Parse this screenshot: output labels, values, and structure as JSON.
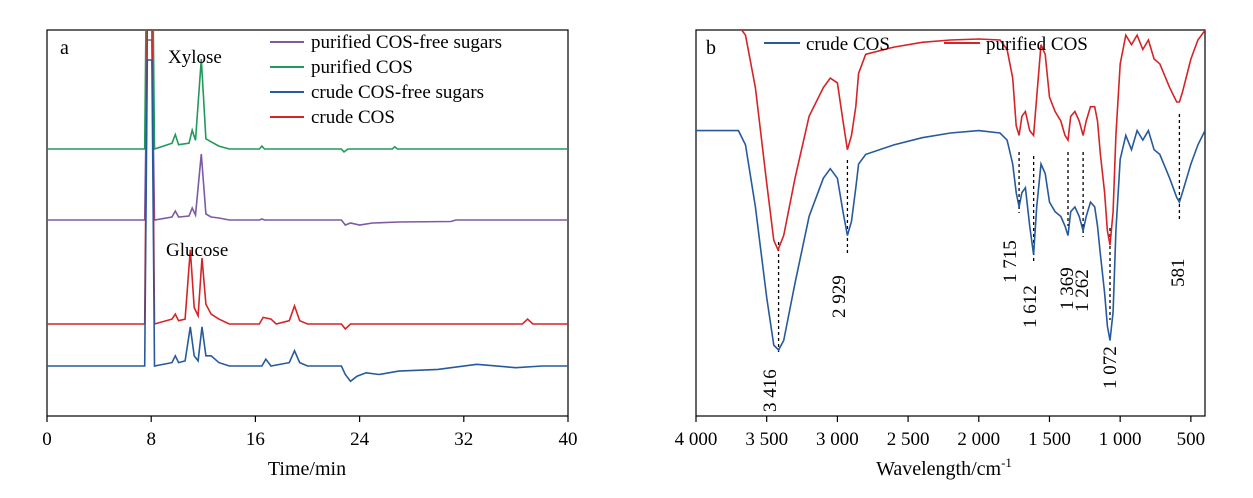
{
  "colors": {
    "red": "#d42428",
    "green": "#1f9a5a",
    "purple": "#7d5aa3",
    "blue": "#275a9c",
    "axis": "#000000"
  },
  "chart_data": [
    {
      "type": "line",
      "panel": "a",
      "xlabel": "Time/min",
      "ylabel": "",
      "xlim": [
        0,
        40
      ],
      "xticks": [
        "0",
        "8",
        "16",
        "24",
        "32",
        "40"
      ],
      "legend": {
        "placement": "top-right",
        "entries": [
          {
            "label": "purified COS-free sugars",
            "color": "#7d5aa3"
          },
          {
            "label": "purified COS",
            "color": "#1f9a5a"
          },
          {
            "label": "crude COS-free sugars",
            "color": "#275a9c"
          },
          {
            "label": "crude COS",
            "color": "#d42428"
          }
        ]
      },
      "annotations": [
        "Xylose",
        "Glucose"
      ],
      "series": [
        {
          "name": "purified COS",
          "color": "#1f9a5a",
          "points": [
            [
              0,
              0
            ],
            [
              7.5,
              0
            ],
            [
              7.7,
              18
            ],
            [
              8.05,
              18
            ],
            [
              8.25,
              0
            ],
            [
              9.6,
              0.4
            ],
            [
              9.85,
              1
            ],
            [
              10.1,
              0.3
            ],
            [
              10.9,
              0.4
            ],
            [
              11.15,
              1.3
            ],
            [
              11.4,
              0.6
            ],
            [
              11.85,
              6.2
            ],
            [
              12.2,
              0.7
            ],
            [
              12.6,
              0.5
            ],
            [
              13.2,
              0.2
            ],
            [
              14,
              0
            ],
            [
              16.3,
              0
            ],
            [
              16.5,
              0.2
            ],
            [
              16.7,
              0
            ],
            [
              22.6,
              0
            ],
            [
              22.8,
              -0.2
            ],
            [
              23.1,
              0
            ],
            [
              26.5,
              0
            ],
            [
              26.7,
              0.15
            ],
            [
              26.9,
              0
            ],
            [
              40,
              0
            ]
          ]
        },
        {
          "name": "purified COS-free sugars",
          "color": "#7d5aa3",
          "points": [
            [
              0,
              0
            ],
            [
              7.5,
              0
            ],
            [
              7.7,
              18
            ],
            [
              8.05,
              18
            ],
            [
              8.25,
              0
            ],
            [
              9.6,
              0.3
            ],
            [
              9.85,
              0.9
            ],
            [
              10.1,
              0.3
            ],
            [
              10.9,
              0.4
            ],
            [
              11.15,
              1.2
            ],
            [
              11.4,
              0.5
            ],
            [
              11.85,
              6.6
            ],
            [
              12.2,
              0.6
            ],
            [
              12.6,
              0.3
            ],
            [
              13.2,
              0.2
            ],
            [
              14,
              0
            ],
            [
              16.3,
              0
            ],
            [
              16.5,
              0.1
            ],
            [
              16.7,
              0
            ],
            [
              22.6,
              0
            ],
            [
              22.9,
              -0.5
            ],
            [
              23.3,
              -0.3
            ],
            [
              24,
              -0.5
            ],
            [
              25,
              -0.3
            ],
            [
              27,
              -0.2
            ],
            [
              31,
              -0.15
            ],
            [
              31.4,
              0
            ],
            [
              40,
              0
            ]
          ]
        },
        {
          "name": "crude COS",
          "color": "#d42428",
          "points": [
            [
              0,
              0
            ],
            [
              7.5,
              0
            ],
            [
              7.7,
              18
            ],
            [
              8.05,
              18
            ],
            [
              8.25,
              0
            ],
            [
              9.6,
              0.3
            ],
            [
              9.85,
              0.6
            ],
            [
              10.1,
              0.2
            ],
            [
              10.6,
              0.3
            ],
            [
              11,
              4.5
            ],
            [
              11.3,
              1
            ],
            [
              11.6,
              0.5
            ],
            [
              11.9,
              4
            ],
            [
              12.2,
              1.2
            ],
            [
              12.6,
              0.6
            ],
            [
              13.2,
              0.3
            ],
            [
              14,
              0
            ],
            [
              16.3,
              0
            ],
            [
              16.6,
              0.4
            ],
            [
              17.2,
              0.3
            ],
            [
              17.6,
              0
            ],
            [
              18.6,
              0.2
            ],
            [
              19,
              1.1
            ],
            [
              19.4,
              0.2
            ],
            [
              20,
              0
            ],
            [
              22.6,
              0
            ],
            [
              22.9,
              -0.3
            ],
            [
              23.3,
              0
            ],
            [
              36.5,
              0
            ],
            [
              36.9,
              0.3
            ],
            [
              37.3,
              0
            ],
            [
              40,
              0
            ]
          ]
        },
        {
          "name": "crude COS-free sugars",
          "color": "#275a9c",
          "points": [
            [
              0,
              0
            ],
            [
              7.5,
              0
            ],
            [
              7.7,
              18
            ],
            [
              8.05,
              18
            ],
            [
              8.25,
              0
            ],
            [
              9.6,
              0.2
            ],
            [
              9.85,
              0.6
            ],
            [
              10.1,
              0.2
            ],
            [
              10.6,
              0.3
            ],
            [
              11,
              2.3
            ],
            [
              11.3,
              0.6
            ],
            [
              11.6,
              0.3
            ],
            [
              11.9,
              2.3
            ],
            [
              12.2,
              0.6
            ],
            [
              12.6,
              0.6
            ],
            [
              13.2,
              0.2
            ],
            [
              14,
              0
            ],
            [
              16.5,
              0
            ],
            [
              16.8,
              0.4
            ],
            [
              17.2,
              0
            ],
            [
              18.6,
              0.2
            ],
            [
              19,
              0.9
            ],
            [
              19.4,
              0.2
            ],
            [
              20,
              0
            ],
            [
              22.6,
              0
            ],
            [
              22.9,
              -0.5
            ],
            [
              23.3,
              -0.9
            ],
            [
              23.8,
              -0.6
            ],
            [
              24.5,
              -0.4
            ],
            [
              25.5,
              -0.5
            ],
            [
              27,
              -0.3
            ],
            [
              30,
              -0.2
            ],
            [
              33,
              0.1
            ],
            [
              36,
              -0.1
            ],
            [
              38,
              0
            ],
            [
              40,
              0
            ]
          ]
        }
      ]
    },
    {
      "type": "line",
      "panel": "b",
      "xlabel": "Wavelength/cm",
      "xlabel_superscript": "-1",
      "ylabel": "",
      "xlim": [
        4000,
        400
      ],
      "xticks": [
        "4 000",
        "3 500",
        "3 000",
        "2 500",
        "2 000",
        "1 500",
        "1 000",
        "500"
      ],
      "legend": {
        "placement": "top",
        "entries": [
          {
            "label": "crude COS",
            "color": "#275a9c"
          },
          {
            "label": "purified COS",
            "color": "#d42428"
          }
        ]
      },
      "peak_labels": [
        "3 416",
        "2 929",
        "1 715",
        "1 612",
        "1 369",
        "1 262",
        "1 072",
        "581"
      ],
      "series": [
        {
          "name": "purified COS",
          "color": "#d42428",
          "points": [
            [
              4000,
              95
            ],
            [
              3700,
              95
            ],
            [
              3650,
              93
            ],
            [
              3580,
              82
            ],
            [
              3500,
              62
            ],
            [
              3450,
              50
            ],
            [
              3420,
              48
            ],
            [
              3380,
              51
            ],
            [
              3300,
              63
            ],
            [
              3200,
              76
            ],
            [
              3100,
              82
            ],
            [
              3050,
              84
            ],
            [
              3000,
              83
            ],
            [
              2960,
              75
            ],
            [
              2929,
              69
            ],
            [
              2900,
              72
            ],
            [
              2870,
              78
            ],
            [
              2850,
              85
            ],
            [
              2800,
              89
            ],
            [
              2600,
              90.5
            ],
            [
              2400,
              91.5
            ],
            [
              2200,
              92
            ],
            [
              2000,
              92.2
            ],
            [
              1850,
              92
            ],
            [
              1800,
              90
            ],
            [
              1760,
              84
            ],
            [
              1735,
              74
            ],
            [
              1715,
              72
            ],
            [
              1695,
              76
            ],
            [
              1670,
              77
            ],
            [
              1640,
              73
            ],
            [
              1612,
              72
            ],
            [
              1590,
              80
            ],
            [
              1560,
              91
            ],
            [
              1530,
              89
            ],
            [
              1500,
              80
            ],
            [
              1460,
              77
            ],
            [
              1420,
              75
            ],
            [
              1390,
              72
            ],
            [
              1369,
              71
            ],
            [
              1350,
              76
            ],
            [
              1320,
              77
            ],
            [
              1290,
              75
            ],
            [
              1262,
              72
            ],
            [
              1240,
              75
            ],
            [
              1210,
              78
            ],
            [
              1180,
              78
            ],
            [
              1160,
              75
            ],
            [
              1140,
              68
            ],
            [
              1110,
              60
            ],
            [
              1090,
              52
            ],
            [
              1072,
              49
            ],
            [
              1050,
              56
            ],
            [
              1030,
              72
            ],
            [
              1000,
              87
            ],
            [
              960,
              93
            ],
            [
              920,
              91
            ],
            [
              880,
              93
            ],
            [
              840,
              90
            ],
            [
              800,
              92
            ],
            [
              760,
              88
            ],
            [
              720,
              87
            ],
            [
              650,
              82
            ],
            [
              600,
              79
            ],
            [
              581,
              79
            ],
            [
              560,
              81
            ],
            [
              500,
              88
            ],
            [
              450,
              92
            ],
            [
              400,
              94
            ]
          ]
        },
        {
          "name": "crude COS",
          "color": "#275a9c",
          "points": [
            [
              4000,
              73
            ],
            [
              3700,
              73
            ],
            [
              3650,
              70
            ],
            [
              3580,
              57
            ],
            [
              3500,
              38
            ],
            [
              3450,
              28
            ],
            [
              3416,
              27
            ],
            [
              3380,
              29
            ],
            [
              3300,
              41
            ],
            [
              3200,
              55
            ],
            [
              3100,
              63
            ],
            [
              3050,
              65
            ],
            [
              3000,
              63
            ],
            [
              2960,
              56
            ],
            [
              2929,
              51
            ],
            [
              2900,
              54
            ],
            [
              2870,
              61
            ],
            [
              2850,
              66
            ],
            [
              2800,
              68
            ],
            [
              2600,
              70
            ],
            [
              2400,
              71.5
            ],
            [
              2200,
              72.5
            ],
            [
              2000,
              73
            ],
            [
              1850,
              72.5
            ],
            [
              1800,
              71
            ],
            [
              1760,
              66
            ],
            [
              1735,
              60
            ],
            [
              1715,
              57
            ],
            [
              1695,
              60
            ],
            [
              1670,
              61
            ],
            [
              1640,
              53
            ],
            [
              1612,
              47
            ],
            [
              1590,
              57
            ],
            [
              1560,
              66
            ],
            [
              1530,
              64
            ],
            [
              1500,
              58
            ],
            [
              1460,
              56
            ],
            [
              1420,
              55
            ],
            [
              1390,
              53
            ],
            [
              1369,
              51
            ],
            [
              1350,
              56
            ],
            [
              1320,
              57
            ],
            [
              1290,
              55
            ],
            [
              1262,
              52
            ],
            [
              1240,
              55
            ],
            [
              1210,
              58
            ],
            [
              1180,
              57
            ],
            [
              1160,
              53
            ],
            [
              1140,
              47
            ],
            [
              1110,
              39
            ],
            [
              1090,
              32
            ],
            [
              1072,
              29
            ],
            [
              1050,
              35
            ],
            [
              1030,
              52
            ],
            [
              1000,
              67
            ],
            [
              960,
              72
            ],
            [
              920,
              69
            ],
            [
              880,
              73
            ],
            [
              840,
              71
            ],
            [
              800,
              73
            ],
            [
              760,
              69
            ],
            [
              720,
              68
            ],
            [
              650,
              63
            ],
            [
              600,
              59
            ],
            [
              581,
              58
            ],
            [
              560,
              60
            ],
            [
              500,
              66
            ],
            [
              450,
              70
            ],
            [
              400,
              73
            ]
          ]
        }
      ]
    }
  ]
}
